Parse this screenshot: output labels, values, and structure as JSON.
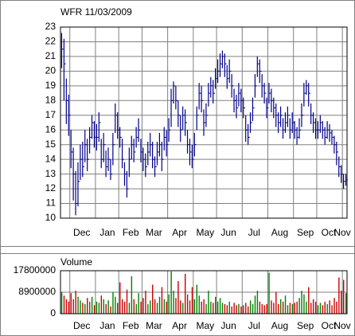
{
  "chart_data": {
    "type": "ohlc",
    "title": "WFR 11/03/2009",
    "volume_title": "Volume",
    "color": "#00008b",
    "up_color": "#008000",
    "down_color": "#cc0000",
    "grid": true,
    "ylim": [
      10,
      23
    ],
    "yticks": [
      10,
      11,
      12,
      13,
      14,
      15,
      16,
      17,
      18,
      19,
      20,
      21,
      22,
      23
    ],
    "volume_ylim": [
      0,
      17800000
    ],
    "volume_yticks": [
      0,
      8900000,
      17800000
    ],
    "categories": [
      null,
      null,
      null,
      null,
      "Dec",
      null,
      null,
      null,
      null,
      null,
      null,
      null,
      null,
      null,
      null,
      "Jan",
      null,
      null,
      null,
      null,
      null,
      null,
      null,
      null,
      null,
      "Feb",
      null,
      null,
      null,
      null,
      null,
      null,
      null,
      null,
      null,
      "Mar",
      null,
      null,
      null,
      null,
      null,
      null,
      null,
      null,
      null,
      null,
      "Apr",
      null,
      null,
      null,
      null,
      null,
      null,
      null,
      null,
      null,
      null,
      "May",
      null,
      null,
      null,
      null,
      null,
      null,
      null,
      null,
      null,
      "Jun",
      null,
      null,
      null,
      null,
      null,
      null,
      null,
      null,
      null,
      null,
      "Jul",
      null,
      null,
      null,
      null,
      null,
      null,
      null,
      null,
      null,
      null,
      "Aug",
      null,
      null,
      null,
      null,
      null,
      null,
      null,
      null,
      null,
      null,
      "Sep",
      null,
      null,
      null,
      null,
      null,
      null,
      null,
      null,
      null,
      "Oct",
      null,
      null,
      null,
      null,
      null,
      null,
      null,
      null,
      null,
      null,
      "Nov",
      null
    ],
    "close": [
      21.5,
      20.5,
      18,
      17,
      14.5,
      13,
      11,
      12.5,
      14,
      13.5,
      15,
      14,
      15.5,
      16.5,
      15.5,
      15.5,
      16.5,
      14,
      15,
      13.5,
      14,
      13,
      15,
      17,
      16,
      15.5,
      14,
      13,
      12,
      14,
      15,
      14.5,
      15.5,
      16,
      14.5,
      14,
      13.5,
      14.5,
      15,
      14,
      13.5,
      14.5,
      15,
      14,
      15.5,
      15,
      16,
      18,
      19,
      18,
      17,
      16,
      17,
      16.5,
      15,
      14.5,
      14,
      15,
      17,
      18.5,
      18,
      16.5,
      17,
      18.5,
      19,
      18.5,
      19.5,
      20,
      20.5,
      21,
      20.5,
      19.5,
      20,
      19,
      18,
      17.5,
      18.5,
      18,
      17.5,
      16,
      15.5,
      16.5,
      17.5,
      19,
      20.5,
      20,
      19,
      18.5,
      17.5,
      18.5,
      18,
      17.5,
      17,
      16.5,
      17,
      16,
      16.5,
      17,
      16,
      16.5,
      16,
      15.5,
      16,
      17,
      18.5,
      19,
      18.5,
      17,
      16.5,
      16,
      16,
      16.5,
      16,
      15.5,
      16,
      15.8,
      15.5,
      15,
      14.5,
      13.5,
      13,
      12.5,
      12.6
    ],
    "high": [
      22.6,
      22.2,
      19.5,
      18.4,
      16,
      14.8,
      13.2,
      13.8,
      15,
      15.2,
      16,
      15.4,
      16.2,
      17,
      16.6,
      16.4,
      17.2,
      15.4,
      15.8,
      14.6,
      14.8,
      14,
      15.8,
      17.8,
      17.2,
      16.2,
      15.4,
      13.8,
      13.2,
      14.8,
      15.6,
      15.4,
      16.2,
      16.8,
      15.4,
      14.8,
      14.4,
      15.2,
      15.8,
      15.2,
      14.2,
      15.2,
      15.8,
      15.2,
      16.2,
      16,
      16.8,
      18.8,
      19.3,
      19,
      18,
      17,
      17.6,
      17.4,
      16,
      15.4,
      15,
      15.8,
      17.6,
      19.2,
      19,
      17.4,
      17.8,
      19.2,
      19.6,
      19.4,
      20.2,
      20.8,
      21.2,
      21.4,
      21.2,
      20.4,
      20.8,
      19.8,
      18.8,
      18.4,
      19.2,
      18.8,
      18.2,
      17,
      16.4,
      17.2,
      18.2,
      19.8,
      21,
      20.8,
      19.8,
      19.2,
      18.2,
      19.2,
      18.8,
      18.2,
      17.8,
      17.2,
      17.6,
      16.8,
      17.2,
      17.6,
      16.8,
      17.2,
      16.6,
      16.2,
      16.8,
      17.8,
      19.2,
      19.4,
      19.2,
      17.8,
      17.2,
      16.8,
      16.6,
      17,
      16.6,
      16.2,
      16.6,
      16.4,
      16,
      15.6,
      15.2,
      14.2,
      13.6,
      13,
      13
    ],
    "low": [
      20.2,
      18,
      16.4,
      15.6,
      13.4,
      11.2,
      10.2,
      10.8,
      12.6,
      12.8,
      13.8,
      13.2,
      14.4,
      15.4,
      14.8,
      14.6,
      15.2,
      13.4,
      13.8,
      12.8,
      13.2,
      12.6,
      13.6,
      15.8,
      15.4,
      14.8,
      13.4,
      12.2,
      11.4,
      12.8,
      14,
      13.8,
      14.8,
      15.2,
      13.8,
      13.2,
      12.8,
      13.6,
      14.2,
      13.4,
      12.8,
      13.6,
      14.2,
      13.2,
      14.6,
      14.2,
      15.2,
      16.2,
      17.8,
      17.4,
      16.2,
      15.2,
      16,
      15.6,
      14.4,
      13.6,
      13.4,
      14.2,
      16,
      17.4,
      17.2,
      15.6,
      16.2,
      17.6,
      18.2,
      17.8,
      18.8,
      19.2,
      19.6,
      20.2,
      19.6,
      18.8,
      19.2,
      18.2,
      17.2,
      16.8,
      17.6,
      17.2,
      16.8,
      15.2,
      15,
      15.8,
      16.6,
      18.2,
      19.6,
      19.2,
      18.2,
      17.8,
      16.8,
      17.8,
      17.2,
      16.8,
      16.2,
      15.8,
      16.2,
      15.4,
      15.8,
      16.2,
      15.4,
      15.8,
      15.4,
      15,
      15.4,
      16.2,
      17.6,
      18.4,
      17.6,
      16.4,
      15.8,
      15.4,
      15.4,
      15.8,
      15.4,
      15,
      15.4,
      15.2,
      15,
      14.4,
      13.6,
      12.8,
      12.4,
      12,
      12.2
    ],
    "volume": [
      9000000,
      7500000,
      6000000,
      5000000,
      8500000,
      6000000,
      9500000,
      7000000,
      5500000,
      4500000,
      4000000,
      6500000,
      5000000,
      7000000,
      3500000,
      5000000,
      4500000,
      7500000,
      6000000,
      4000000,
      5500000,
      3000000,
      9000000,
      7000000,
      4500000,
      13000000,
      6000000,
      5000000,
      10000000,
      4500000,
      15500000,
      6000000,
      4000000,
      8500000,
      5000000,
      6500000,
      9500000,
      4000000,
      5500000,
      12000000,
      6000000,
      4500000,
      7000000,
      11000000,
      6000000,
      5000000,
      8000000,
      17500000,
      9500000,
      6500000,
      13500000,
      5500000,
      4500000,
      16500000,
      8000000,
      5500000,
      11000000,
      6000000,
      12000000,
      7500000,
      5000000,
      6000000,
      4000000,
      9500000,
      5000000,
      4500000,
      7000000,
      5000000,
      6500000,
      4500000,
      4000000,
      3500000,
      5000000,
      3000000,
      4500000,
      3500000,
      4000000,
      3000000,
      3500000,
      4500000,
      3000000,
      5500000,
      4000000,
      7500000,
      9500000,
      5000000,
      4000000,
      3500000,
      4000000,
      17000000,
      5500000,
      4500000,
      9000000,
      4000000,
      6000000,
      5000000,
      7500000,
      3500000,
      4500000,
      4000000,
      4500000,
      5000000,
      6500000,
      9500000,
      8000000,
      5000000,
      11000000,
      4500000,
      6000000,
      5000000,
      3500000,
      4500000,
      3500000,
      5000000,
      4000000,
      5500000,
      3500000,
      6500000,
      5000000,
      15000000,
      9500000,
      14000000,
      8500000
    ]
  }
}
